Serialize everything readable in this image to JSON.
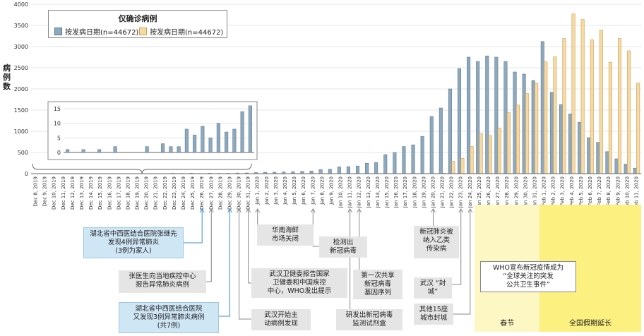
{
  "chart_data": {
    "type": "bar",
    "title": "仅确诊病例",
    "ylabel": "病例数",
    "ylim": [
      0,
      4000
    ],
    "yticks": [
      0,
      500,
      1000,
      1500,
      2000,
      2500,
      3000,
      3500,
      4000
    ],
    "colors": {
      "series1": "#8ea9bd",
      "series2": "#f6d9a4"
    },
    "categories": [
      "Dec 8, 2019",
      "Dec 9, 2019",
      "Dec 10, 2019",
      "Dec 11, 2019",
      "Dec 12, 2019",
      "Dec 13, 2019",
      "Dec 14, 2019",
      "Dec 15, 2019",
      "Dec 16, 2019",
      "Dec 17, 2019",
      "Dec 18, 2019",
      "Dec 19, 2019",
      "Dec 20, 2019",
      "Dec 21, 2019",
      "Dec 22, 2019",
      "Dec 23, 2019",
      "Dec 24, 2019",
      "Dec 25, 2019",
      "Dec 26, 2019",
      "Dec 27, 2019",
      "Dec 28, 2019",
      "Dec 29, 2019",
      "Dec 30, 2019",
      "Dec 31, 2019",
      "Jan 1, 2020",
      "Jan 2, 2020",
      "Jan 3, 2020",
      "Jan 4, 2020",
      "Jan 5, 2020",
      "Jan 6, 2020",
      "Jan 7, 2020",
      "Jan 8, 2020",
      "Jan 9, 2020",
      "Jan 10, 2020",
      "Jan 11, 2020",
      "Jan 12, 2020",
      "Jan 13, 2020",
      "Jan 14, 2020",
      "Jan 15, 2020",
      "Jan 16, 2020",
      "Jan 17, 2020",
      "Jan 18, 2020",
      "Jan 19, 2020",
      "Jan 20, 2020",
      "Jan 21, 2020",
      "Jan 22, 2020",
      "Jan 23, 2020",
      "Jan 24, 2020",
      "Jan 25, 2020",
      "Jan 26, 2020",
      "Jan 27, 2020",
      "Jan 28, 2020",
      "Jan 29, 2020",
      "Jan 30, 2020",
      "Jan 31, 2020",
      "Feb 1, 2020",
      "Feb 2, 2020",
      "Feb 3, 2020",
      "Feb 4, 2020",
      "Feb 5, 2020",
      "Feb 6, 2020",
      "Feb 7, 2020",
      "Feb 8, 2020",
      "Feb 9, 2020",
      "Feb 10, 2020",
      "Feb 11, 2020"
    ],
    "series": [
      {
        "name": "按发病日期(n=44672)",
        "values": [
          1,
          0,
          1,
          0,
          1,
          0,
          2,
          0,
          0,
          0,
          2,
          0,
          3,
          2,
          2,
          8,
          6,
          9,
          5,
          10,
          7,
          8,
          14,
          16,
          24,
          32,
          35,
          40,
          46,
          55,
          62,
          95,
          105,
          160,
          165,
          180,
          245,
          262,
          450,
          500,
          640,
          680,
          880,
          1350,
          1550,
          2000,
          2480,
          2750,
          2650,
          2780,
          2750,
          2650,
          2400,
          2350,
          2200,
          3120,
          1920,
          1630,
          1410,
          1210,
          850,
          740,
          520,
          350,
          225,
          130
        ]
      },
      {
        "name": "按发病日期(n=44672)",
        "values": [
          0,
          0,
          0,
          0,
          0,
          0,
          0,
          0,
          0,
          0,
          0,
          0,
          0,
          0,
          0,
          0,
          0,
          0,
          0,
          0,
          0,
          0,
          0,
          0,
          0,
          0,
          0,
          0,
          0,
          0,
          0,
          0,
          0,
          0,
          0,
          0,
          0,
          0,
          0,
          0,
          0,
          0,
          0,
          5,
          10,
          290,
          360,
          640,
          950,
          900,
          1080,
          1440,
          1620,
          1890,
          2130,
          2640,
          2760,
          3190,
          3770,
          3640,
          3160,
          3390,
          2630,
          3190,
          2900,
          2140
        ]
      }
    ],
    "inset": {
      "categories_range": [
        "Dec 8, 2019",
        "Dec 31, 2019"
      ],
      "ylim": [
        0,
        15
      ],
      "yticks": [
        0,
        5,
        10,
        15
      ]
    },
    "highlights": [
      {
        "label": "春节",
        "from": "Jan 25, 2020",
        "to": "Jan 31, 2020",
        "color": "#fdf7c4"
      },
      {
        "label": "全国假期延长",
        "from": "Feb 1, 2020",
        "to": "Feb 11, 2020",
        "color": "#fcf081"
      }
    ],
    "legend_placement": "top-left"
  },
  "annotations": [
    {
      "text": "湖北省中西医结合医院张继先\n发现4例异常肺炎\n(3例为家人)",
      "style": "blue",
      "anchor": "Dec 26, 2019"
    },
    {
      "text": "张医生向当地疾控中心\n报告异常肺炎病例",
      "style": "grey",
      "anchor": "Dec 27, 2019"
    },
    {
      "text": "湖北省中西医结合医院\n又发现3例异常肺炎病例\n(共7例)",
      "style": "blue",
      "anchor": "Dec 29, 2019"
    },
    {
      "text": "武汉开始主\n动病例发现",
      "style": "grey",
      "anchor": "Dec 30, 2019"
    },
    {
      "text": "武汉卫健委报告国家\n卫健委和中国疾控\n中心，WHO发出提示",
      "style": "grey",
      "anchor": "Dec 31, 2019"
    },
    {
      "text": "华南海鲜\n市场关闭",
      "style": "grey",
      "anchor": "Jan 1, 2020"
    },
    {
      "text": "检测出\n新冠病毒",
      "style": "grey",
      "anchor": "Jan 7, 2020"
    },
    {
      "text": "第一次共享\n新冠病毒\n基因序列",
      "style": "grey",
      "anchor": "Jan 12, 2020"
    },
    {
      "text": "研发出新冠病毒\n监测试剂盒",
      "style": "grey",
      "anchor": "Jan 11, 2020"
    },
    {
      "text": "新冠肺炎被\n纳入乙类\n传染病",
      "style": "grey",
      "anchor": "Jan 20, 2020"
    },
    {
      "text": "武汉 “封城”",
      "style": "grey",
      "anchor": "Jan 23, 2020"
    },
    {
      "text": "其他15座\n城市封城",
      "style": "grey",
      "anchor": "Jan 24, 2020"
    },
    {
      "text": "WHO宣布新冠疫情成为\n“全球关注的突发\n公共卫生事件”",
      "style": "white",
      "anchor": "Jan 30, 2020"
    }
  ]
}
